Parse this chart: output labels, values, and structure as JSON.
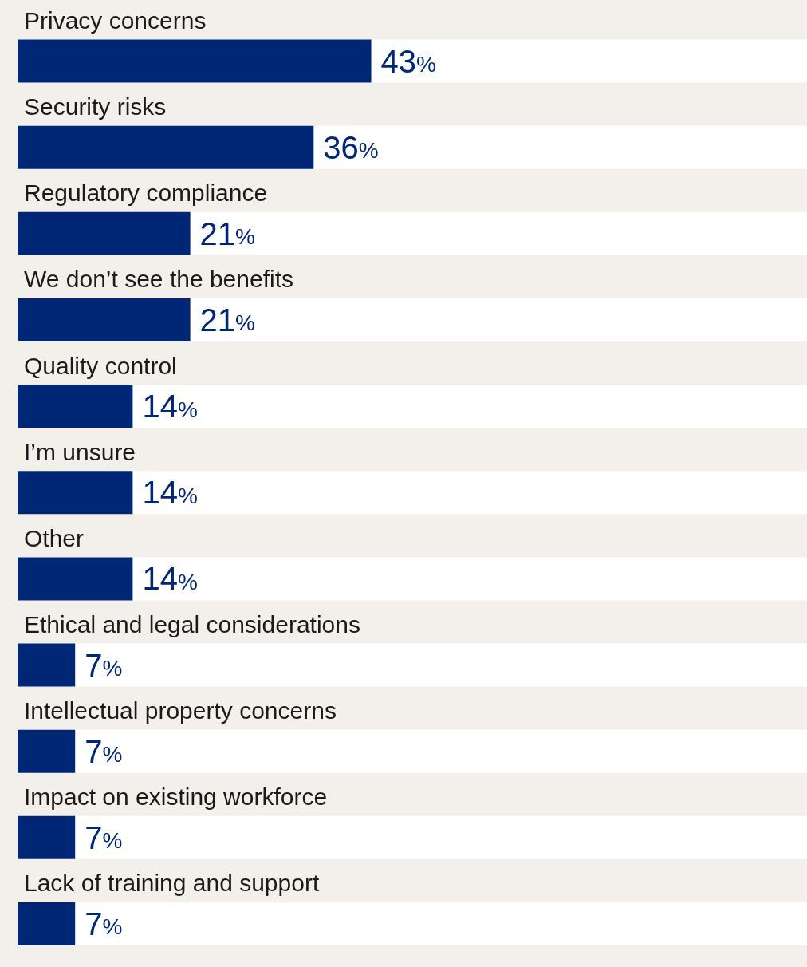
{
  "chart_data": {
    "type": "bar",
    "orientation": "horizontal",
    "categories": [
      "Privacy concerns",
      "Security risks",
      "Regulatory compliance",
      "We don’t see the benefits",
      "Quality control",
      "I’m unsure",
      "Other",
      "Ethical and legal considerations",
      "Intellectual property concerns",
      "Impact on existing workforce",
      "Lack of training and support"
    ],
    "values": [
      43,
      36,
      21,
      21,
      14,
      14,
      14,
      7,
      7,
      7,
      7
    ],
    "value_labels": [
      "43%",
      "36%",
      "21%",
      "21%",
      "14%",
      "14%",
      "14%",
      "7%",
      "7%",
      "7%",
      "7%"
    ],
    "color": "#002776"
  }
}
